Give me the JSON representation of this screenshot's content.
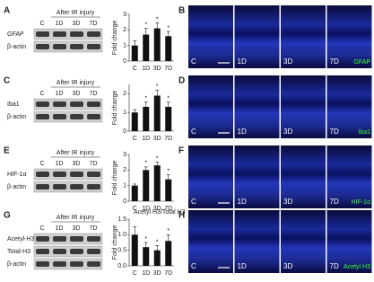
{
  "panels": [
    {
      "blot_letter": "A",
      "image_letter": "B",
      "blot_title": "After IR injury",
      "lanes": [
        "C",
        "1D",
        "3D",
        "7D"
      ],
      "blot_rows": [
        "GFAP",
        "β-actin"
      ],
      "image_labels": [
        "C",
        "1D",
        "3D",
        "7D"
      ],
      "stain": "GFAP"
    },
    {
      "blot_letter": "C",
      "image_letter": "D",
      "blot_title": "After IR injury",
      "lanes": [
        "C",
        "1D",
        "3D",
        "7D"
      ],
      "blot_rows": [
        "Iba1",
        "β-actin"
      ],
      "image_labels": [
        "C",
        "1D",
        "3D",
        "7D"
      ],
      "stain": "Iba1"
    },
    {
      "blot_letter": "E",
      "image_letter": "F",
      "blot_title": "After IR injury",
      "lanes": [
        "C",
        "1D",
        "3D",
        "7D"
      ],
      "blot_rows": [
        "HIF-1α",
        "β-actin"
      ],
      "image_labels": [
        "C",
        "1D",
        "3D",
        "7D"
      ],
      "stain": "HIF-1α"
    },
    {
      "blot_letter": "G",
      "image_letter": "H",
      "blot_title": "After IR injury",
      "lanes": [
        "C",
        "1D",
        "3D",
        "7D"
      ],
      "blot_rows": [
        "Acetyl-H3",
        "Total-H3",
        "β-actin"
      ],
      "image_labels": [
        "C",
        "1D",
        "3D",
        "7D"
      ],
      "stain": "Acetyl H3"
    }
  ],
  "chart_data": [
    {
      "type": "bar",
      "y_label": "Fold change",
      "categories": [
        "C",
        "1D",
        "3D",
        "7D"
      ],
      "values": [
        1,
        1.7,
        2.1,
        1.6
      ],
      "errors": [
        0.3,
        0.4,
        0.35,
        0.3
      ],
      "significance": [
        null,
        "*",
        "*",
        "*"
      ],
      "ylim": [
        0,
        3
      ],
      "yticks": [
        0,
        1,
        2,
        3
      ],
      "color": "#111111"
    },
    {
      "type": "bar",
      "y_label": "Fold change",
      "categories": [
        "C",
        "1D",
        "3D",
        "7D"
      ],
      "values": [
        1,
        1.3,
        1.9,
        1.3
      ],
      "errors": [
        0.15,
        0.25,
        0.3,
        0.25
      ],
      "significance": [
        null,
        "*",
        "*",
        "*"
      ],
      "ylim": [
        0,
        2.5
      ],
      "yticks": [
        0,
        1,
        2
      ],
      "color": "#111111"
    },
    {
      "type": "bar",
      "y_label": "Fold change",
      "categories": [
        "C",
        "1D",
        "3D",
        "7D"
      ],
      "values": [
        1,
        2,
        2.3,
        1.4
      ],
      "errors": [
        0.1,
        0.2,
        0.2,
        0.3
      ],
      "significance": [
        null,
        "*",
        "*",
        "*"
      ],
      "ylim": [
        0,
        3
      ],
      "yticks": [
        0,
        1,
        2,
        3
      ],
      "color": "#111111"
    },
    {
      "type": "bar",
      "title": "Acetyl H3/Total H3",
      "y_label": "Fold change",
      "categories": [
        "C",
        "1D",
        "3D",
        "7D"
      ],
      "values": [
        1,
        0.6,
        0.5,
        0.8
      ],
      "errors": [
        0.25,
        0.15,
        0.15,
        0.2
      ],
      "significance": [
        null,
        "*",
        "*",
        "*"
      ],
      "ylim": [
        0,
        1.5
      ],
      "yticks": [
        {
          "value": 0,
          "label": "0.0"
        },
        {
          "value": 0.5,
          "label": "0.5"
        },
        {
          "value": 1,
          "label": "1.0"
        },
        {
          "value": 1.5,
          "label": "1.5"
        }
      ],
      "color": "#111111"
    }
  ]
}
